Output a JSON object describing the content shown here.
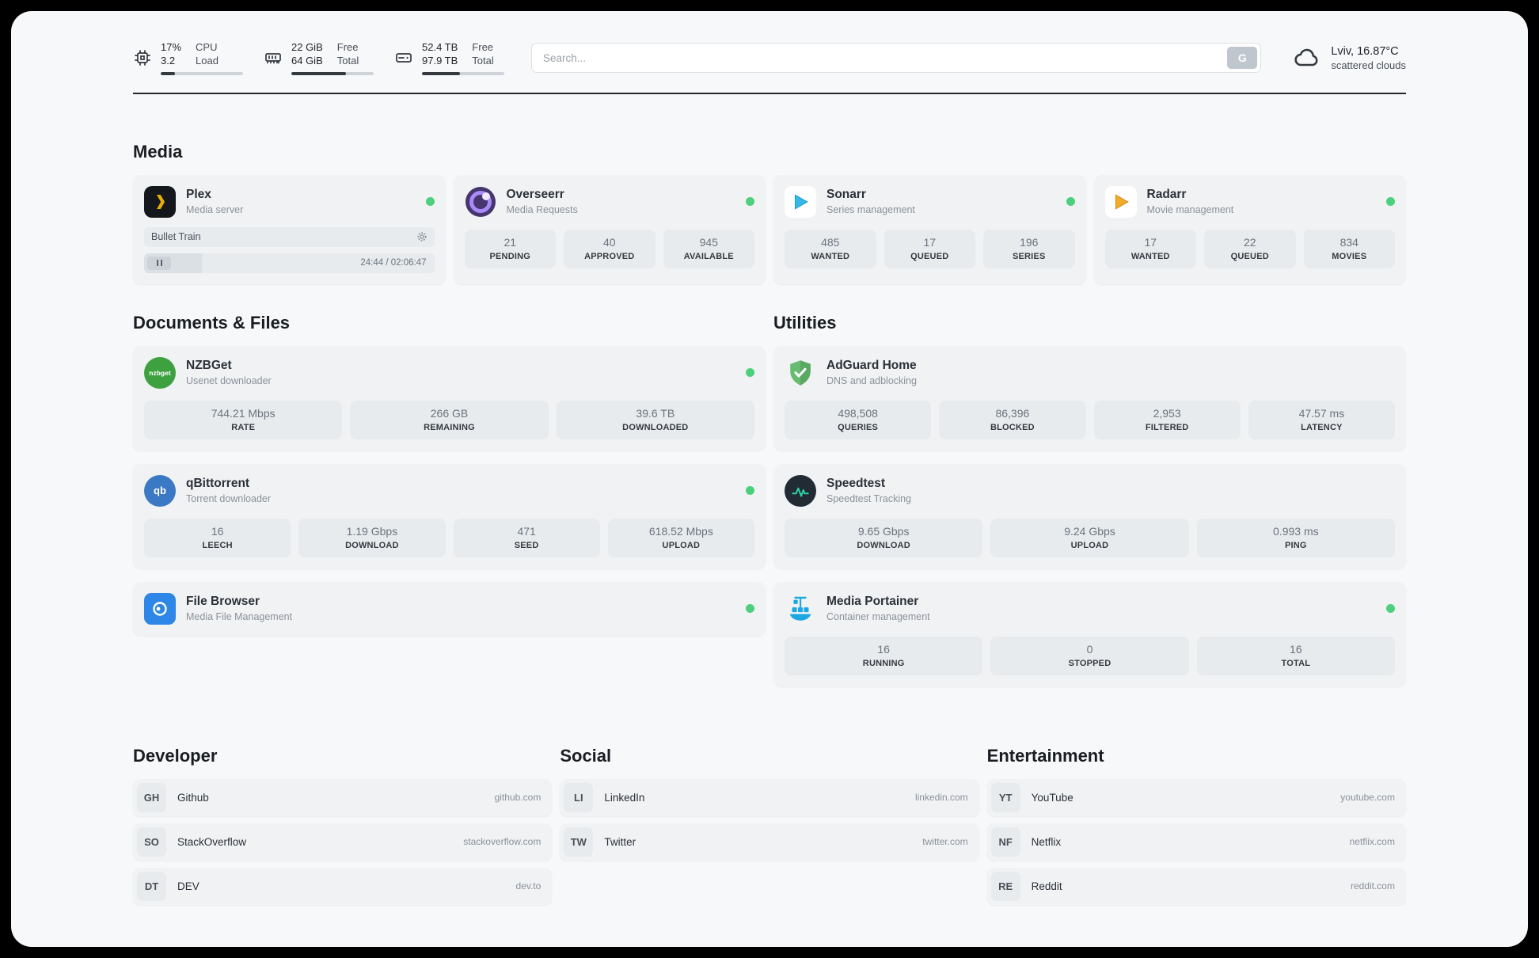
{
  "colors": {
    "status_online": "#4cd07d",
    "accent_plex": "#ebaf00",
    "accent_adguard": "#68bc71",
    "accent_portainer": "#1ba8e0"
  },
  "header": {
    "cpu": {
      "line1": "17%",
      "line2": "3.2",
      "label1": "CPU",
      "label2": "Load",
      "progress": 17
    },
    "ram": {
      "line1": "22 GiB",
      "line2": "64 GiB",
      "label1": "Free",
      "label2": "Total",
      "progress": 66
    },
    "disk": {
      "line1": "52.4 TB",
      "line2": "97.9 TB",
      "label1": "Free",
      "label2": "Total",
      "progress": 46
    },
    "search": {
      "placeholder": "Search...",
      "button_label": "G"
    },
    "weather": {
      "location": "Lviv, 16.87°C",
      "condition": "scattered clouds"
    }
  },
  "sections": {
    "media": {
      "title": "Media",
      "apps": [
        {
          "name": "Plex",
          "subtitle": "Media server",
          "player": {
            "track": "Bullet Train",
            "time": "24:44 / 02:06:47",
            "progress": 20
          }
        },
        {
          "name": "Overseerr",
          "subtitle": "Media Requests",
          "stats": [
            {
              "value": "21",
              "label": "PENDING"
            },
            {
              "value": "40",
              "label": "APPROVED"
            },
            {
              "value": "945",
              "label": "AVAILABLE"
            }
          ]
        },
        {
          "name": "Sonarr",
          "subtitle": "Series management",
          "stats": [
            {
              "value": "485",
              "label": "WANTED"
            },
            {
              "value": "17",
              "label": "QUEUED"
            },
            {
              "value": "196",
              "label": "SERIES"
            }
          ]
        },
        {
          "name": "Radarr",
          "subtitle": "Movie management",
          "stats": [
            {
              "value": "17",
              "label": "WANTED"
            },
            {
              "value": "22",
              "label": "QUEUED"
            },
            {
              "value": "834",
              "label": "MOVIES"
            }
          ]
        }
      ]
    },
    "documents": {
      "title": "Documents & Files",
      "apps": [
        {
          "name": "NZBGet",
          "subtitle": "Usenet downloader",
          "icon_text": "nzbget",
          "stats": [
            {
              "value": "744.21 Mbps",
              "label": "RATE"
            },
            {
              "value": "266 GB",
              "label": "REMAINING"
            },
            {
              "value": "39.6 TB",
              "label": "DOWNLOADED"
            }
          ]
        },
        {
          "name": "qBittorrent",
          "subtitle": "Torrent downloader",
          "icon_text": "qb",
          "stats": [
            {
              "value": "16",
              "label": "LEECH"
            },
            {
              "value": "1.19 Gbps",
              "label": "DOWNLOAD"
            },
            {
              "value": "471",
              "label": "SEED"
            },
            {
              "value": "618.52 Mbps",
              "label": "UPLOAD"
            }
          ]
        },
        {
          "name": "File Browser",
          "subtitle": "Media File Management",
          "stats": []
        }
      ]
    },
    "utilities": {
      "title": "Utilities",
      "apps": [
        {
          "name": "AdGuard Home",
          "subtitle": "DNS and adblocking",
          "stats": [
            {
              "value": "498,508",
              "label": "QUERIES"
            },
            {
              "value": "86,396",
              "label": "BLOCKED"
            },
            {
              "value": "2,953",
              "label": "FILTERED"
            },
            {
              "value": "47.57 ms",
              "label": "LATENCY"
            }
          ]
        },
        {
          "name": "Speedtest",
          "subtitle": "Speedtest Tracking",
          "stats": [
            {
              "value": "9.65 Gbps",
              "label": "DOWNLOAD"
            },
            {
              "value": "9.24 Gbps",
              "label": "UPLOAD"
            },
            {
              "value": "0.993 ms",
              "label": "PING"
            }
          ]
        },
        {
          "name": "Media Portainer",
          "subtitle": "Container management",
          "stats": [
            {
              "value": "16",
              "label": "RUNNING"
            },
            {
              "value": "0",
              "label": "STOPPED"
            },
            {
              "value": "16",
              "label": "TOTAL"
            }
          ]
        }
      ]
    },
    "developer": {
      "title": "Developer",
      "links": [
        {
          "abbr": "GH",
          "name": "Github",
          "url": "github.com"
        },
        {
          "abbr": "SO",
          "name": "StackOverflow",
          "url": "stackoverflow.com"
        },
        {
          "abbr": "DT",
          "name": "DEV",
          "url": "dev.to"
        }
      ]
    },
    "social": {
      "title": "Social",
      "links": [
        {
          "abbr": "LI",
          "name": "LinkedIn",
          "url": "linkedin.com"
        },
        {
          "abbr": "TW",
          "name": "Twitter",
          "url": "twitter.com"
        }
      ]
    },
    "entertainment": {
      "title": "Entertainment",
      "links": [
        {
          "abbr": "YT",
          "name": "YouTube",
          "url": "youtube.com"
        },
        {
          "abbr": "NF",
          "name": "Netflix",
          "url": "netflix.com"
        },
        {
          "abbr": "RE",
          "name": "Reddit",
          "url": "reddit.com"
        }
      ]
    }
  }
}
